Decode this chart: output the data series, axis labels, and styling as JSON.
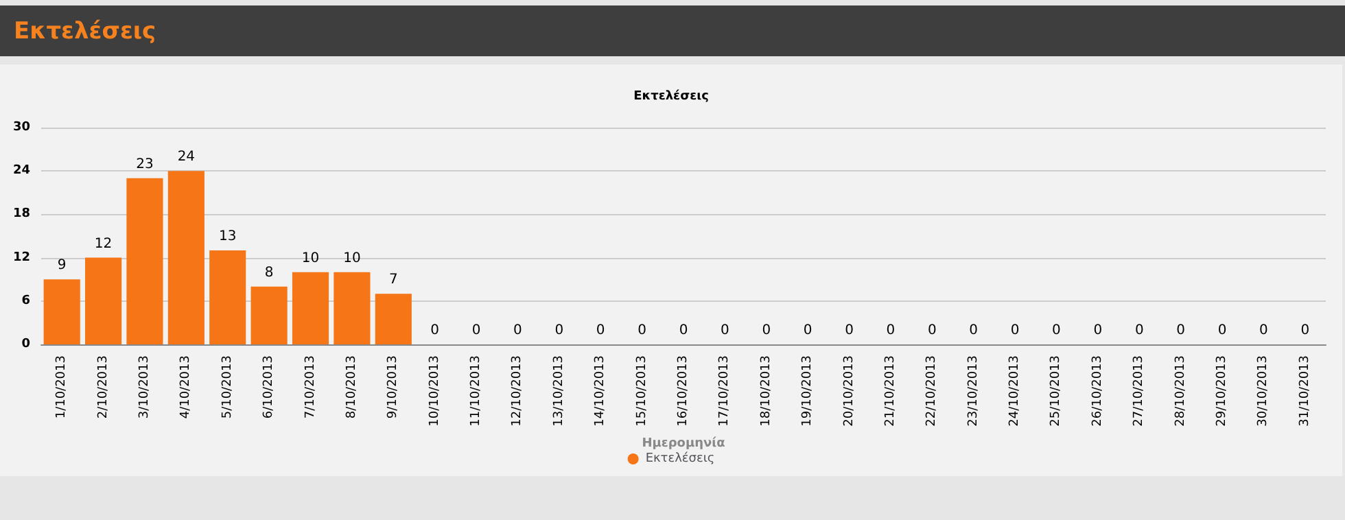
{
  "chart_data": {
    "type": "bar",
    "title": "Εκτελέσεις",
    "subtitle": "Εκτελέσεις",
    "xlabel": "Ημερομηνία",
    "categories": [
      "1/10/2013",
      "2/10/2013",
      "3/10/2013",
      "4/10/2013",
      "5/10/2013",
      "6/10/2013",
      "7/10/2013",
      "8/10/2013",
      "9/10/2013",
      "10/10/2013",
      "11/10/2013",
      "12/10/2013",
      "13/10/2013",
      "14/10/2013",
      "15/10/2013",
      "16/10/2013",
      "17/10/2013",
      "18/10/2013",
      "19/10/2013",
      "20/10/2013",
      "21/10/2013",
      "22/10/2013",
      "23/10/2013",
      "24/10/2013",
      "25/10/2013",
      "26/10/2013",
      "27/10/2013",
      "28/10/2013",
      "29/10/2013",
      "30/10/2013",
      "31/10/2013"
    ],
    "series": [
      {
        "name": "Εκτελέσεις",
        "color": "#f57517",
        "values": [
          9,
          12,
          23,
          24,
          13,
          8,
          10,
          10,
          7,
          0,
          0,
          0,
          0,
          0,
          0,
          0,
          0,
          0,
          0,
          0,
          0,
          0,
          0,
          0,
          0,
          0,
          0,
          0,
          0,
          0,
          0
        ]
      }
    ],
    "ylim": [
      0,
      30
    ],
    "yticks": [
      0,
      6,
      12,
      18,
      24,
      30
    ],
    "grid": "y",
    "legend": "bottom",
    "data_labels": true
  }
}
